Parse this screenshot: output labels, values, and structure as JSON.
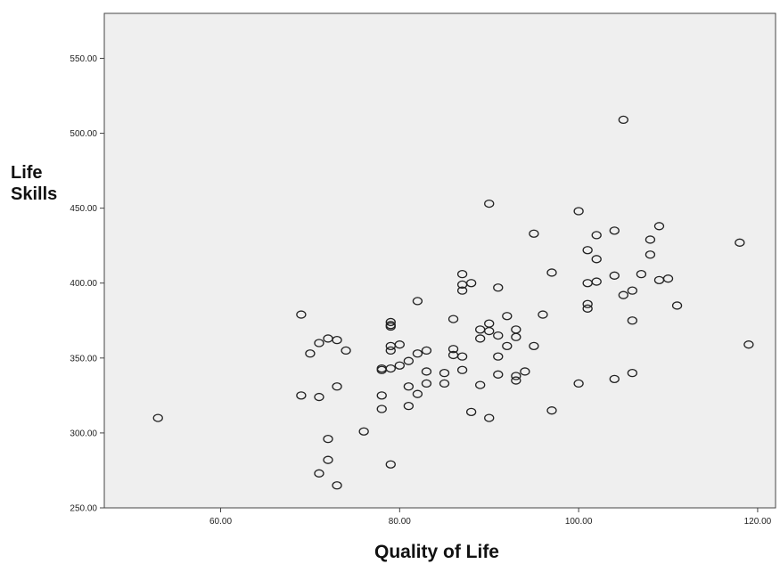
{
  "chart_data": {
    "type": "scatter",
    "title": "",
    "xlabel": "Quality of Life",
    "ylabel_lines": [
      "Life",
      "Skills"
    ],
    "xlim": [
      47,
      122
    ],
    "ylim": [
      250,
      580
    ],
    "x_ticks": [
      60,
      80,
      100,
      120
    ],
    "x_tick_labels": [
      "60.00",
      "80.00",
      "100.00",
      "120.00"
    ],
    "y_ticks": [
      250,
      300,
      350,
      400,
      450,
      500,
      550
    ],
    "y_tick_labels": [
      "250.00",
      "300.00",
      "350.00",
      "400.00",
      "450.00",
      "500.00",
      "550.00"
    ],
    "grid": false,
    "colors": {
      "plot_background": "#efefef",
      "marker_stroke": "#222222",
      "axis": "#444444"
    },
    "points": [
      [
        53,
        310
      ],
      [
        69,
        379
      ],
      [
        69,
        325
      ],
      [
        70,
        353
      ],
      [
        71,
        360
      ],
      [
        71,
        324
      ],
      [
        71,
        273
      ],
      [
        72,
        363
      ],
      [
        72,
        296
      ],
      [
        72,
        282
      ],
      [
        73,
        362
      ],
      [
        73,
        331
      ],
      [
        73,
        265
      ],
      [
        74,
        355
      ],
      [
        76,
        301
      ],
      [
        78,
        343
      ],
      [
        78,
        342
      ],
      [
        78,
        325
      ],
      [
        78,
        316
      ],
      [
        79,
        374
      ],
      [
        79,
        372
      ],
      [
        79,
        371
      ],
      [
        79,
        358
      ],
      [
        79,
        355
      ],
      [
        79,
        343
      ],
      [
        79,
        279
      ],
      [
        80,
        359
      ],
      [
        80,
        345
      ],
      [
        81,
        348
      ],
      [
        81,
        331
      ],
      [
        81,
        318
      ],
      [
        82,
        388
      ],
      [
        82,
        353
      ],
      [
        82,
        326
      ],
      [
        83,
        355
      ],
      [
        83,
        341
      ],
      [
        83,
        333
      ],
      [
        85,
        340
      ],
      [
        85,
        333
      ],
      [
        86,
        376
      ],
      [
        86,
        356
      ],
      [
        86,
        352
      ],
      [
        87,
        406
      ],
      [
        87,
        399
      ],
      [
        87,
        395
      ],
      [
        87,
        351
      ],
      [
        87,
        342
      ],
      [
        88,
        400
      ],
      [
        88,
        314
      ],
      [
        89,
        369
      ],
      [
        89,
        363
      ],
      [
        89,
        332
      ],
      [
        90,
        453
      ],
      [
        90,
        373
      ],
      [
        90,
        368
      ],
      [
        90,
        310
      ],
      [
        91,
        397
      ],
      [
        91,
        365
      ],
      [
        91,
        351
      ],
      [
        91,
        339
      ],
      [
        92,
        378
      ],
      [
        92,
        358
      ],
      [
        93,
        369
      ],
      [
        93,
        364
      ],
      [
        93,
        338
      ],
      [
        93,
        335
      ],
      [
        94,
        341
      ],
      [
        95,
        433
      ],
      [
        95,
        358
      ],
      [
        96,
        379
      ],
      [
        97,
        407
      ],
      [
        97,
        315
      ],
      [
        100,
        448
      ],
      [
        100,
        333
      ],
      [
        101,
        422
      ],
      [
        101,
        400
      ],
      [
        101,
        386
      ],
      [
        101,
        383
      ],
      [
        102,
        432
      ],
      [
        102,
        416
      ],
      [
        102,
        401
      ],
      [
        104,
        435
      ],
      [
        104,
        405
      ],
      [
        104,
        336
      ],
      [
        105,
        509
      ],
      [
        105,
        392
      ],
      [
        106,
        395
      ],
      [
        106,
        375
      ],
      [
        106,
        340
      ],
      [
        107,
        406
      ],
      [
        108,
        429
      ],
      [
        108,
        419
      ],
      [
        109,
        438
      ],
      [
        109,
        402
      ],
      [
        110,
        403
      ],
      [
        111,
        385
      ],
      [
        118,
        427
      ],
      [
        119,
        359
      ]
    ]
  }
}
